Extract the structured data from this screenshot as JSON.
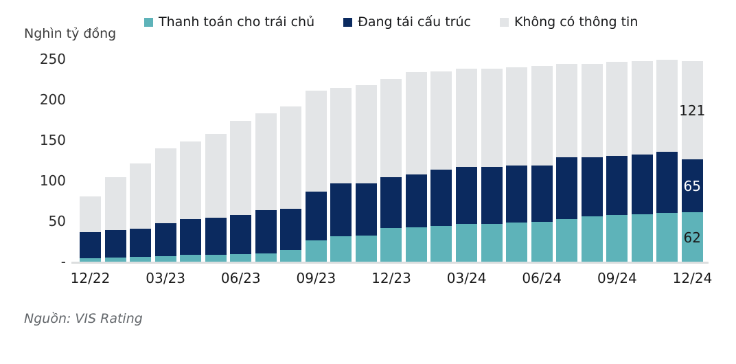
{
  "header": {
    "y_axis_title": "Nghìn tỷ đồng",
    "legend": [
      {
        "label": "Thanh toán cho trái chủ",
        "color": "#5EB3B9"
      },
      {
        "label": "Đang tái cấu trúc",
        "color": "#0B2A5F"
      },
      {
        "label": "Không có thông tin",
        "color": "#E3E5E7"
      }
    ]
  },
  "chart_data": {
    "type": "bar",
    "stacked": true,
    "title": "",
    "xlabel": "",
    "ylabel": "Nghìn tỷ đồng",
    "ylim": [
      0,
      250
    ],
    "grid": false,
    "legend_position": "top",
    "x": [
      "12/22",
      "01/23",
      "02/23",
      "03/23",
      "04/23",
      "05/23",
      "06/23",
      "07/23",
      "08/23",
      "09/23",
      "10/23",
      "11/23",
      "12/23",
      "01/24",
      "02/24",
      "03/24",
      "04/24",
      "05/24",
      "06/24",
      "07/24",
      "08/24",
      "09/24",
      "10/24",
      "11/24",
      "12/24"
    ],
    "x_tick_labels": [
      "12/22",
      "03/23",
      "06/23",
      "09/23",
      "12/23",
      "03/24",
      "06/24",
      "09/24",
      "12/24"
    ],
    "x_tick_every": 3,
    "yticks": [
      {
        "label": "250",
        "value": 250
      },
      {
        "label": "200",
        "value": 200
      },
      {
        "label": "150",
        "value": 150
      },
      {
        "label": "100",
        "value": 100
      },
      {
        "label": "50",
        "value": 50
      },
      {
        "label": "-",
        "value": 0
      }
    ],
    "series": [
      {
        "name": "Thanh toán cho trái chủ",
        "color": "#5EB3B9",
        "values": [
          5,
          6,
          7,
          8,
          9,
          9,
          10,
          11,
          15,
          27,
          32,
          33,
          42,
          43,
          45,
          47,
          47,
          49,
          50,
          53,
          57,
          58,
          59,
          61,
          62
        ]
      },
      {
        "name": "Đang tái cấu trúc",
        "color": "#0B2A5F",
        "values": [
          32,
          34,
          35,
          41,
          44,
          46,
          48,
          53,
          51,
          60,
          65,
          64,
          63,
          65,
          69,
          70,
          70,
          70,
          69,
          76,
          73,
          73,
          74,
          75,
          65
        ]
      },
      {
        "name": "Không có thông tin",
        "color": "#E3E5E7",
        "values": [
          44,
          65,
          80,
          92,
          96,
          103,
          116,
          119,
          126,
          124,
          118,
          121,
          121,
          126,
          121,
          121,
          121,
          121,
          123,
          115,
          115,
          116,
          115,
          113,
          121
        ]
      }
    ],
    "annotations": [
      {
        "bar": "12/24",
        "series": "Không có thông tin",
        "text": "121",
        "text_color": "#1a1a1a"
      },
      {
        "bar": "12/24",
        "series": "Đang tái cấu trúc",
        "text": "65",
        "text_color": "#ffffff"
      },
      {
        "bar": "12/24",
        "series": "Thanh toán cho trái chủ",
        "text": "62",
        "text_color": "#1a1a1a"
      }
    ]
  },
  "footer": {
    "source": "Nguồn: VIS Rating"
  }
}
